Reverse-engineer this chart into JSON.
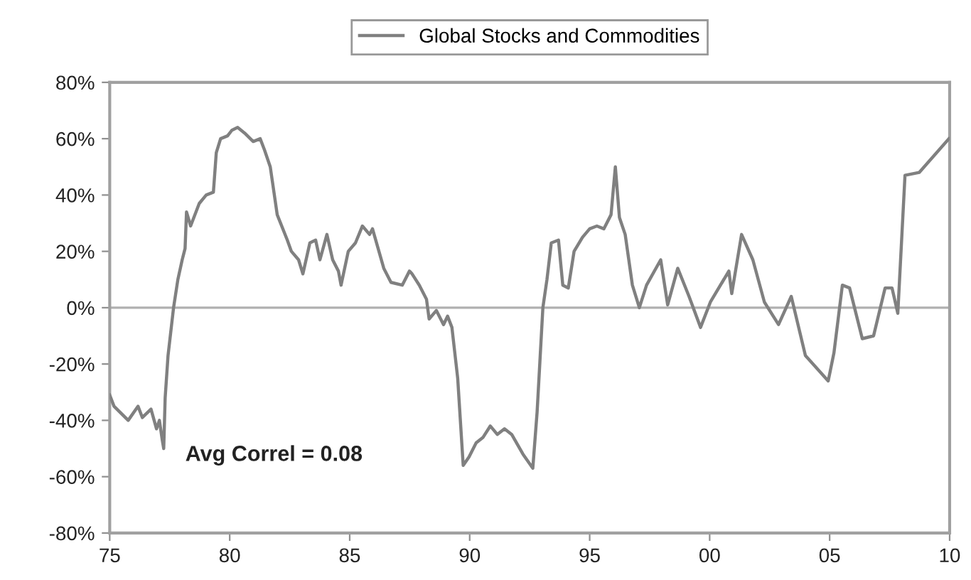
{
  "chart_data": {
    "type": "line",
    "x": [
      1975.0,
      1975.18,
      1975.77,
      1976.18,
      1976.36,
      1976.72,
      1976.95,
      1977.07,
      1977.19,
      1977.25,
      1977.31,
      1977.43,
      1977.66,
      1977.84,
      1978.02,
      1978.14,
      1978.2,
      1978.37,
      1978.73,
      1979.02,
      1979.32,
      1979.44,
      1979.62,
      1979.91,
      1980.09,
      1980.33,
      1980.62,
      1980.98,
      1981.27,
      1981.45,
      1981.69,
      1981.98,
      1982.4,
      1982.57,
      1982.87,
      1983.05,
      1983.34,
      1983.58,
      1983.76,
      1984.05,
      1984.29,
      1984.53,
      1984.64,
      1984.94,
      1985.24,
      1985.53,
      1985.83,
      1985.95,
      1986.42,
      1986.72,
      1987.19,
      1987.49,
      1987.6,
      1987.9,
      1988.2,
      1988.31,
      1988.61,
      1988.91,
      1989.08,
      1989.26,
      1989.5,
      1989.73,
      1989.97,
      1990.27,
      1990.56,
      1990.86,
      1991.15,
      1991.45,
      1991.75,
      1992.22,
      1992.63,
      1992.81,
      1993.05,
      1993.22,
      1993.4,
      1993.7,
      1993.88,
      1994.11,
      1994.35,
      1994.7,
      1995.0,
      1995.3,
      1995.59,
      1995.89,
      1996.07,
      1996.24,
      1996.48,
      1996.78,
      1997.07,
      1997.37,
      1997.96,
      1998.25,
      1998.67,
      1999.14,
      1999.62,
      2000.03,
      2000.8,
      2000.92,
      2001.33,
      2001.8,
      2002.28,
      2002.87,
      2003.4,
      2003.99,
      2004.94,
      2005.18,
      2005.53,
      2005.83,
      2006.36,
      2006.83,
      2007.31,
      2007.6,
      2007.84,
      2008.14,
      2008.73,
      2009.97
    ],
    "series": [
      {
        "name": "Global Stocks and Commodities",
        "color": "#808080",
        "values": [
          -31,
          -35,
          -40,
          -35,
          -39,
          -36,
          -43,
          -40,
          -47,
          -50,
          -32,
          -17,
          0,
          10,
          17,
          21,
          34,
          29,
          37,
          40,
          41,
          55,
          60,
          61,
          63,
          64,
          62,
          59,
          60,
          56,
          50,
          33,
          24,
          20,
          17,
          12,
          23,
          24,
          17,
          26,
          17,
          13,
          8,
          20,
          23,
          29,
          26,
          28,
          14,
          9,
          8,
          13,
          12,
          8,
          3,
          -4,
          -1,
          -6,
          -3,
          -7,
          -25,
          -56,
          -53,
          -48,
          -46,
          -42,
          -45,
          -43,
          -45,
          -52,
          -57,
          -37,
          0,
          10,
          23,
          24,
          8,
          7,
          20,
          25,
          28,
          29,
          28,
          33,
          50,
          32,
          26,
          8,
          0,
          8,
          17,
          1,
          14,
          4,
          -7,
          2,
          13,
          5,
          26,
          17,
          2,
          -6,
          4,
          -17,
          -26,
          -16,
          8,
          7,
          -11,
          -10,
          7,
          7,
          -2,
          47,
          48,
          60
        ]
      }
    ],
    "xlim": [
      1975,
      2010
    ],
    "xticks": [
      {
        "value": 1975,
        "label": "75"
      },
      {
        "value": 1980,
        "label": "80"
      },
      {
        "value": 1985,
        "label": "85"
      },
      {
        "value": 1990,
        "label": "90"
      },
      {
        "value": 1995,
        "label": "95"
      },
      {
        "value": 2000,
        "label": "00"
      },
      {
        "value": 2005,
        "label": "05"
      },
      {
        "value": 2010,
        "label": "10"
      }
    ],
    "ylim": [
      -80,
      80
    ],
    "yticks": [
      {
        "value": 80,
        "label": "80%"
      },
      {
        "value": 60,
        "label": "60%"
      },
      {
        "value": 40,
        "label": "40%"
      },
      {
        "value": 20,
        "label": "20%"
      },
      {
        "value": 0,
        "label": "0%"
      },
      {
        "value": -20,
        "label": "-20%"
      },
      {
        "value": -40,
        "label": "-40%"
      },
      {
        "value": -60,
        "label": "-60%"
      },
      {
        "value": -80,
        "label": "-80%"
      }
    ],
    "ref_lines": [
      {
        "axis": "y",
        "value": 0,
        "color": "#b0b0b0"
      }
    ],
    "annotations": [
      "Avg Correl = 0.08"
    ],
    "legend": "top",
    "grid": false,
    "marker": "none",
    "line_style": "solid"
  }
}
